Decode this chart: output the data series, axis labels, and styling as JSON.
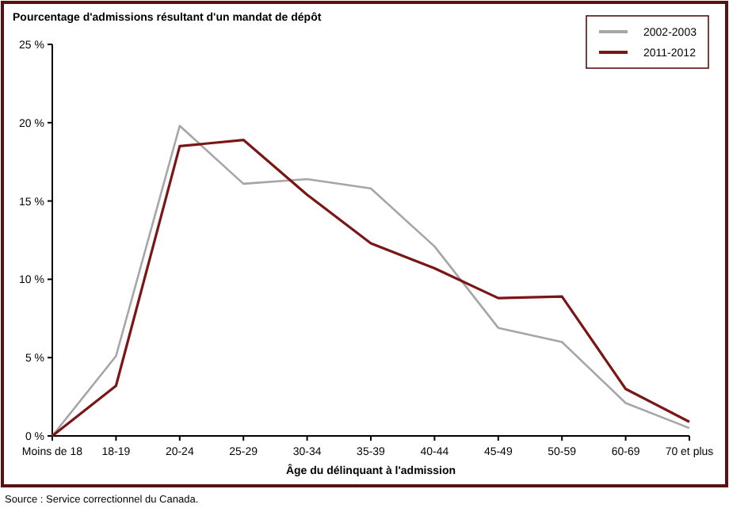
{
  "chart_data": {
    "type": "line",
    "title": "Pourcentage d'admissions résultant d'un mandat de dépôt",
    "xlabel": "Âge du délinquant à l'admission",
    "categories": [
      "Moins de 18",
      "18-19",
      "20-24",
      "25-29",
      "30-34",
      "35-39",
      "40-44",
      "45-49",
      "50-59",
      "60-69",
      "70 et plus"
    ],
    "series": [
      {
        "name": "2002-2003",
        "color": "#a6a6a6",
        "values": [
          0,
          5.1,
          19.8,
          16.1,
          16.4,
          15.8,
          12.1,
          6.9,
          6.0,
          2.1,
          0.5
        ]
      },
      {
        "name": "2011-2012",
        "color": "#7a1616",
        "values": [
          0,
          3.2,
          18.5,
          18.9,
          15.4,
          12.3,
          10.7,
          8.8,
          8.9,
          3.0,
          0.9
        ]
      }
    ],
    "ylim": [
      0,
      25
    ],
    "yticks": [
      {
        "value": 0,
        "label": "0 %"
      },
      {
        "value": 5,
        "label": "5 %"
      },
      {
        "value": 10,
        "label": "10 %"
      },
      {
        "value": 15,
        "label": "15 %"
      },
      {
        "value": 20,
        "label": "20 %"
      },
      {
        "value": 25,
        "label": "25 %"
      }
    ],
    "grid": false,
    "legend": "top right",
    "marker": "none",
    "line_style": "solid",
    "annotations": [
      "Source : Service correctionnel du Canada."
    ]
  }
}
